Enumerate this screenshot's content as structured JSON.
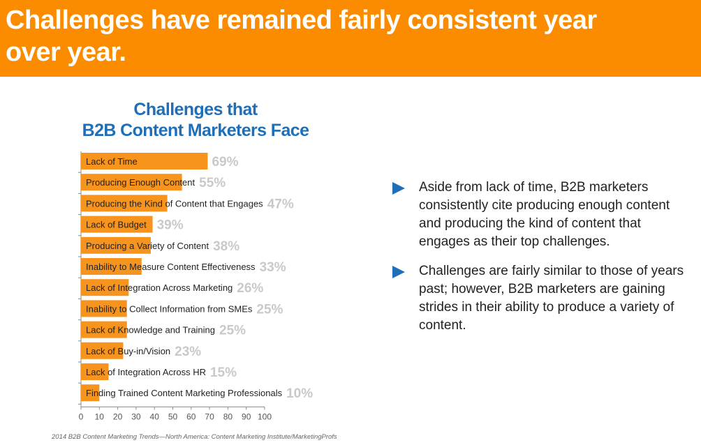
{
  "header": {
    "title": "Challenges have remained fairly consistent year over year.",
    "color": "#fb8c00"
  },
  "chart_data": {
    "type": "bar",
    "orientation": "horizontal",
    "title_line1": "Challenges that",
    "title_line2": "B2B Content Marketers Face",
    "categories": [
      "Lack of Time",
      "Producing Enough Content",
      "Producing the Kind of Content that Engages",
      "Lack of Budget",
      "Producing a Variety of Content",
      "Inability to Measure Content Effectiveness",
      "Lack of Integration Across Marketing",
      "Inability to Collect Information from SMEs",
      "Lack of Knowledge and Training",
      "Lack of Buy-in/Vision",
      "Lack of Integration Across HR",
      "Finding Trained Content Marketing Professionals"
    ],
    "values": [
      69,
      55,
      47,
      39,
      38,
      33,
      26,
      25,
      25,
      23,
      15,
      10
    ],
    "value_labels": [
      "69%",
      "55%",
      "47%",
      "39%",
      "38%",
      "33%",
      "26%",
      "25%",
      "25%",
      "23%",
      "15%",
      "10%"
    ],
    "xlim": [
      0,
      100
    ],
    "xticks": [
      0,
      10,
      20,
      30,
      40,
      50,
      60,
      70,
      80,
      90,
      100
    ],
    "grid": false,
    "bar_color": "#f7941d",
    "title_color": "#1f6fb8",
    "value_label_color": "#c9c9c9"
  },
  "source": "2014 B2B Content Marketing Trends—North America: Content Marketing Institute/MarketingProfs",
  "bullets": [
    {
      "icon": "triangle-right-icon",
      "text": "Aside from lack of time, B2B marketers consistently cite producing enough content and producing the kind of content that engages as their top challenges."
    },
    {
      "icon": "triangle-right-icon",
      "text": "Challenges are fairly similar to those of years past; however, B2B marketers are gaining strides in their ability to produce a variety of content."
    }
  ]
}
